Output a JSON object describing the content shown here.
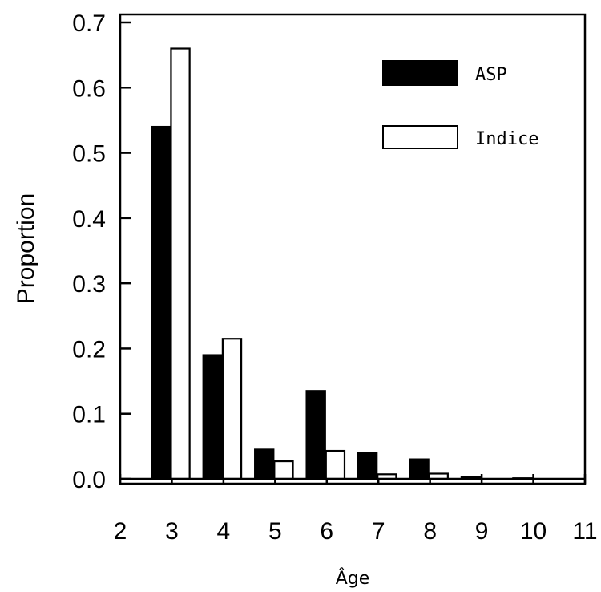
{
  "chart_data": {
    "type": "bar",
    "title": "",
    "xlabel": "Âge",
    "ylabel": "Proportion",
    "categories": [
      3,
      4,
      5,
      6,
      7,
      8,
      9,
      10
    ],
    "x_ticks": [
      "2",
      "3",
      "4",
      "5",
      "6",
      "7",
      "8",
      "9",
      "10",
      "11"
    ],
    "y_ticks": [
      "0.0",
      "0.1",
      "0.2",
      "0.3",
      "0.4",
      "0.5",
      "0.6",
      "0.7"
    ],
    "xlim": [
      2,
      11
    ],
    "ylim": [
      0,
      0.7
    ],
    "grid": false,
    "legend_position": "top-right",
    "series": [
      {
        "name": "ASP",
        "color": "#000000",
        "values": [
          0.54,
          0.19,
          0.045,
          0.135,
          0.04,
          0.03,
          0.003,
          0.001
        ]
      },
      {
        "name": "Indice",
        "color": "#ffffff",
        "values": [
          0.66,
          0.215,
          0.027,
          0.043,
          0.007,
          0.008,
          0.0,
          0.0
        ]
      }
    ]
  }
}
